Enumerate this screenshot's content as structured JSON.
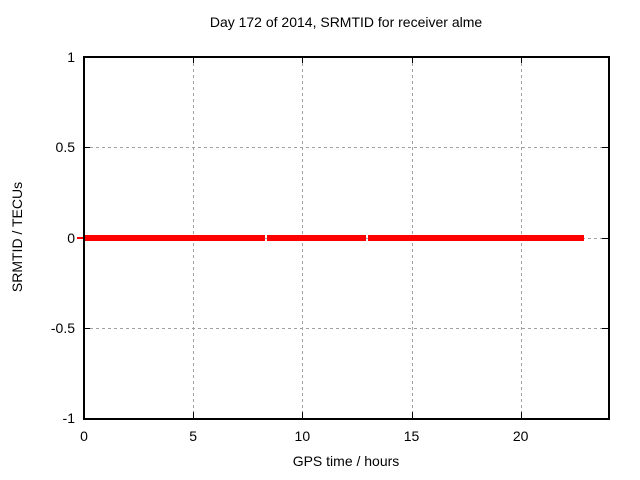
{
  "chart_data": {
    "type": "line",
    "title": "Day 172 of 2014, SRMTID for receiver alme",
    "xlabel": "GPS time / hours",
    "ylabel": "SRMTID / TECUs",
    "xlim": [
      0,
      24
    ],
    "ylim": [
      -1,
      1
    ],
    "xticks": [
      0,
      5,
      10,
      15,
      20
    ],
    "xtick_labels": [
      "0",
      "5",
      "10",
      "15",
      "20"
    ],
    "yticks": [
      -1,
      -0.5,
      0,
      0.5,
      1
    ],
    "ytick_labels": [
      "-1",
      "-0.5",
      "0",
      "0.5",
      "1"
    ],
    "grid": true,
    "legend": "none",
    "series": [
      {
        "name": "SRMTID",
        "color": "#ff0000",
        "constant_value": 0,
        "segments": [
          {
            "x_start": 0.0,
            "x_end": 8.3,
            "y": 0
          },
          {
            "x_start": 8.4,
            "x_end": 12.9,
            "y": 0
          },
          {
            "x_start": 13.0,
            "x_end": 22.9,
            "y": 0
          }
        ]
      }
    ],
    "extras": {
      "red_dash_left_of_y_axis": true
    },
    "colors": {
      "line": "#ff0000",
      "grid": "#a0a0a0",
      "border": "#000000",
      "background": "#ffffff",
      "text": "#000000"
    }
  }
}
